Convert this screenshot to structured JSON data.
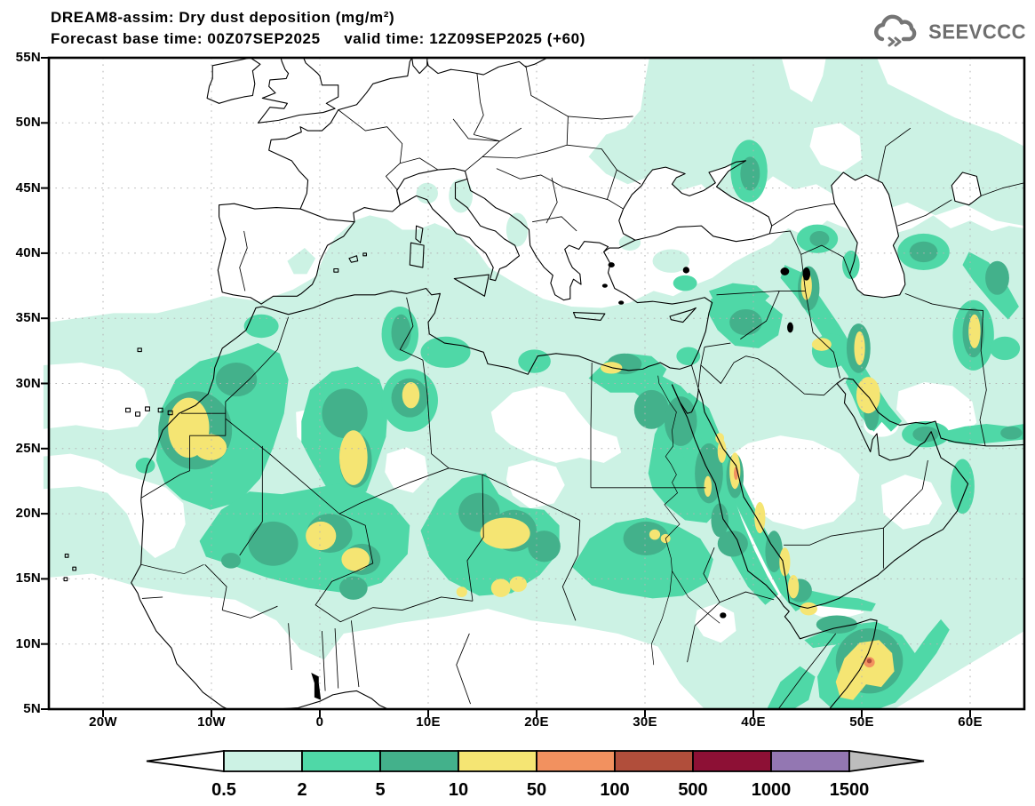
{
  "header": {
    "title": "DREAM8-assim: Dry dust deposition (mg/m²)",
    "subtitle": "Forecast base time: 00Z07SEP2025     valid time: 12Z09SEP2025 (+60)"
  },
  "logo": {
    "text": "SEEVCCC",
    "icon": "cloud-with-arrows",
    "color": "#6e6e6e"
  },
  "axes": {
    "lat_ticks": [
      "55N",
      "50N",
      "45N",
      "40N",
      "35N",
      "30N",
      "25N",
      "20N",
      "15N",
      "10N",
      "5N"
    ],
    "lon_ticks": [
      "20W",
      "10W",
      "0",
      "10E",
      "20E",
      "30E",
      "40E",
      "50E",
      "60E"
    ]
  },
  "legend": {
    "values": [
      "0.5",
      "2",
      "5",
      "10",
      "50",
      "100",
      "500",
      "1000",
      "1500"
    ],
    "segment_colors": [
      "#ccf2e4",
      "#4fd8a7",
      "#43b18b",
      "#f5e573",
      "#f2915f",
      "#b14e3b",
      "#8d1035",
      "#9377b2"
    ],
    "under_arrow_color": "#ffffff",
    "over_arrow_color": "#bdbdbd",
    "outline_color": "#000000"
  },
  "chart_data": {
    "type": "heatmap",
    "title": "DREAM8-assim: Dry dust deposition (mg/m²)",
    "subtitle": "Forecast base time: 00Z07SEP2025     valid time: 12Z09SEP2025 (+60)",
    "legend_values": [
      0.5,
      2,
      5,
      10,
      50,
      100,
      500,
      1000,
      1500
    ],
    "legend_colors": [
      "#ccf2e4",
      "#4fd8a7",
      "#43b18b",
      "#f5e573",
      "#f2915f",
      "#b14e3b",
      "#8d1035",
      "#9377b2"
    ],
    "x_tick_labels": [
      "20W",
      "10W",
      "0",
      "10E",
      "20E",
      "30E",
      "40E",
      "50E",
      "60E"
    ],
    "y_tick_labels": [
      "55N",
      "50N",
      "45N",
      "40N",
      "35N",
      "30N",
      "25N",
      "20N",
      "15N",
      "10N",
      "5N"
    ],
    "grid": "dotted",
    "legend_position": "bottom"
  }
}
